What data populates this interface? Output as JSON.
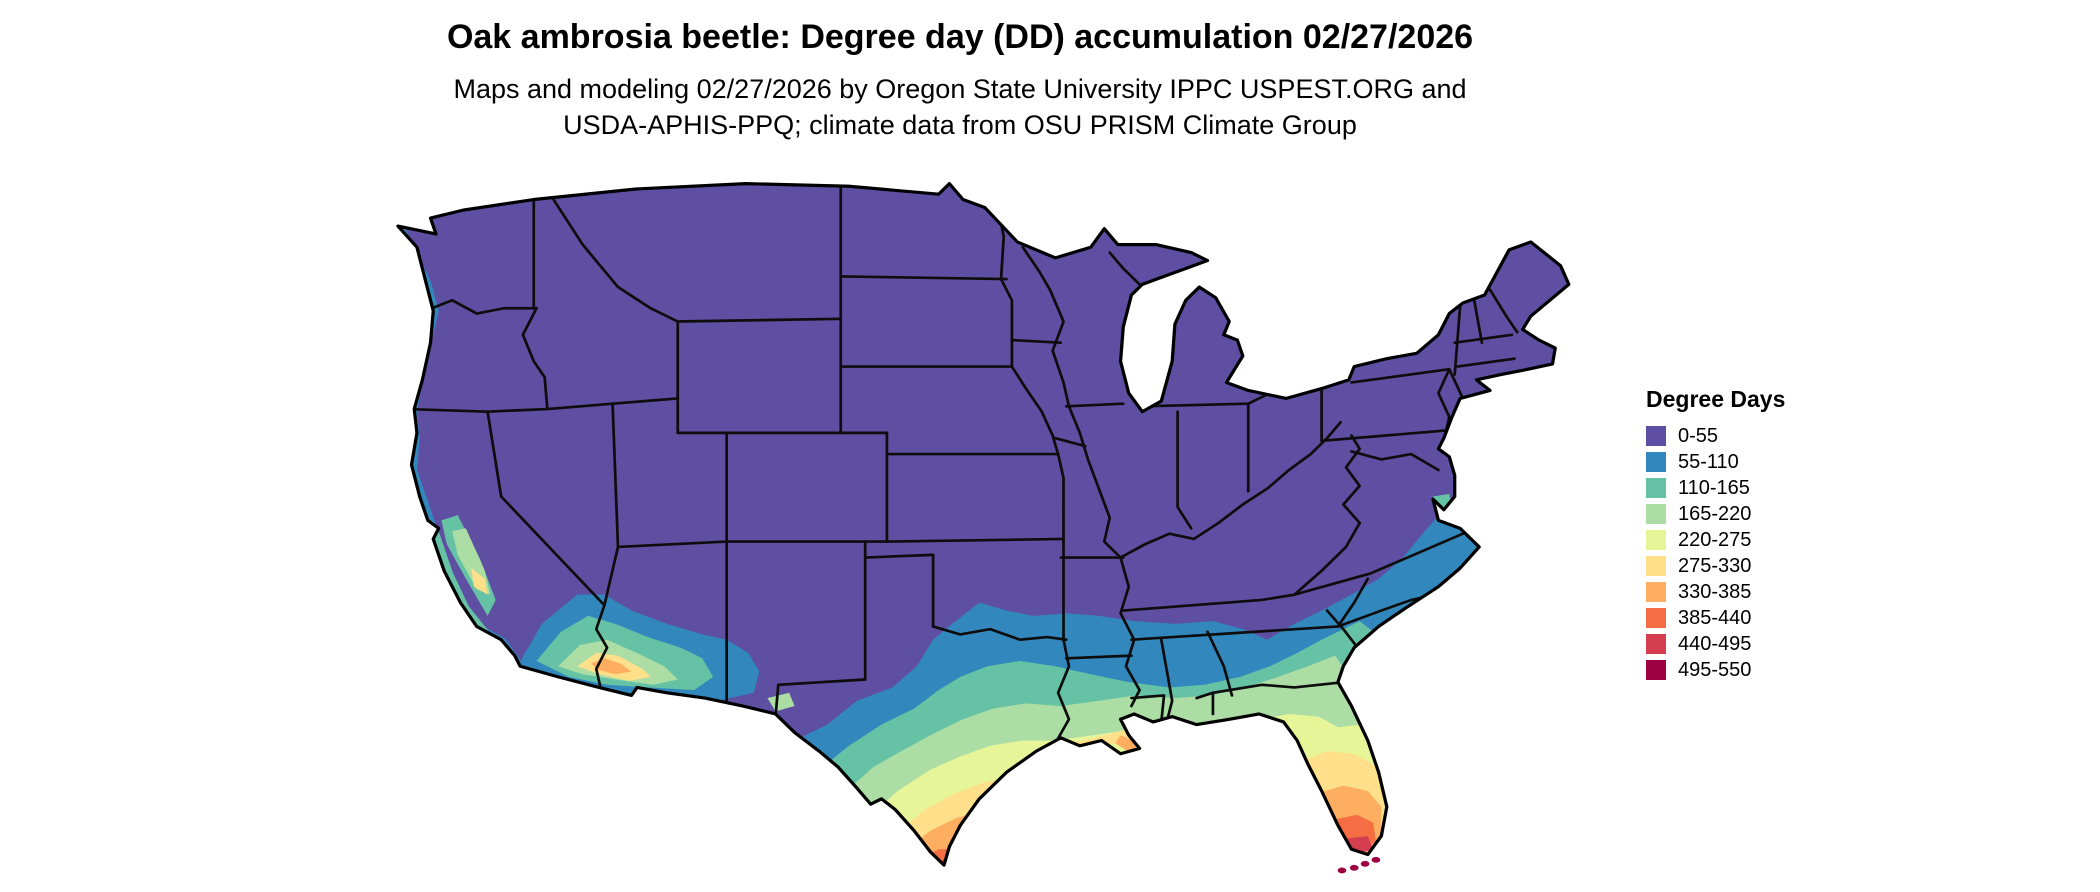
{
  "title": "Oak ambrosia beetle: Degree day (DD) accumulation 02/27/2026",
  "subtitle": {
    "line1": "Maps and modeling 02/27/2026 by Oregon State University IPPC USPEST.ORG and",
    "line2": "USDA-APHIS-PPQ; climate data from OSU PRISM Climate Group"
  },
  "legend": {
    "title": "Degree Days",
    "entries": [
      {
        "label": "0-55",
        "color": "#5e4fa2"
      },
      {
        "label": "55-110",
        "color": "#3288bd"
      },
      {
        "label": "110-165",
        "color": "#66c2a5"
      },
      {
        "label": "165-220",
        "color": "#abdda4"
      },
      {
        "label": "220-275",
        "color": "#e6f598"
      },
      {
        "label": "275-330",
        "color": "#fee08b"
      },
      {
        "label": "330-385",
        "color": "#fdae61"
      },
      {
        "label": "385-440",
        "color": "#f46d43"
      },
      {
        "label": "440-495",
        "color": "#d53e4f"
      },
      {
        "label": "495-550",
        "color": "#9e0142"
      }
    ]
  },
  "map": {
    "region": "Continental United States",
    "border_color": "#000000",
    "unit": "Degree Days"
  }
}
